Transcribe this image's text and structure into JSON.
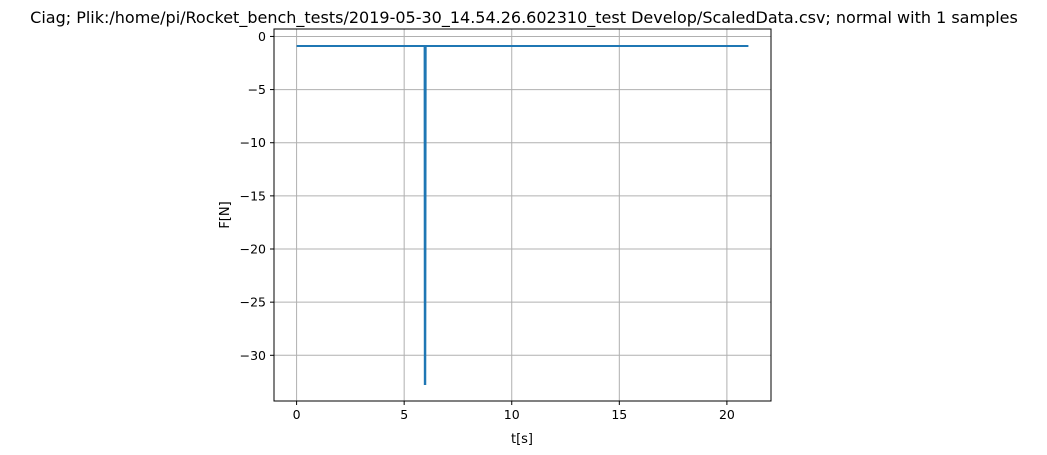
{
  "chart_data": {
    "type": "line",
    "title": "Ciag; Plik:/home/pi/Rocket_bench_tests/2019-05-30_14.54.26.602310_test Develop/ScaledData.csv; normal with 1 samples",
    "xlabel": "t[s]",
    "ylabel": "F[N]",
    "xlim": [
      -1.05,
      22.05
    ],
    "ylim": [
      -34.3,
      0.7
    ],
    "x_ticks": [
      0,
      5,
      10,
      15,
      20
    ],
    "y_ticks": [
      0,
      -5,
      -10,
      -15,
      -20,
      -25,
      -30
    ],
    "x_tick_labels": [
      "0",
      "5",
      "10",
      "15",
      "20"
    ],
    "y_tick_labels": [
      "0",
      "−5",
      "−10",
      "−15",
      "−20",
      "−25",
      "−30"
    ],
    "grid": true,
    "series": [
      {
        "color": "#1f77b4",
        "x": [
          0,
          5.95,
          5.96,
          5.98,
          6.0,
          21.0
        ],
        "y": [
          -0.9,
          -0.9,
          -32.7,
          -32.7,
          -0.9,
          -0.9
        ]
      }
    ]
  }
}
